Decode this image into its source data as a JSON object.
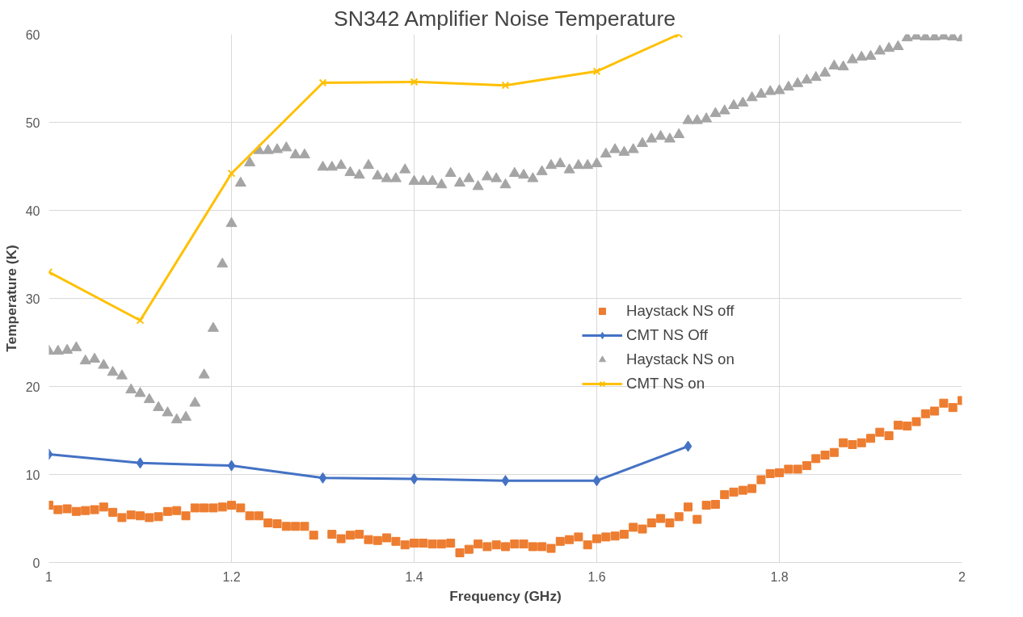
{
  "chart_data": {
    "type": "line",
    "title": "SN342 Amplifier Noise Temperature",
    "xlabel": "Frequency (GHz)",
    "ylabel": "Temperature (K)",
    "xlim": [
      1,
      2
    ],
    "xticks": [
      1,
      1.2,
      1.4,
      1.6,
      1.8,
      2
    ],
    "ylim": [
      0,
      60
    ],
    "yticks": [
      0,
      10,
      20,
      30,
      40,
      50,
      60
    ],
    "grid": true,
    "legend": "right",
    "series": [
      {
        "name": "Haystack NS off",
        "type": "scatter",
        "marker": "square",
        "color": "#ed7d31",
        "x": [
          1,
          1.01,
          1.02,
          1.03,
          1.04,
          1.05,
          1.06,
          1.07,
          1.08,
          1.09,
          1.1,
          1.11,
          1.12,
          1.13,
          1.14,
          1.15,
          1.16,
          1.17,
          1.18,
          1.19,
          1.2,
          1.21,
          1.22,
          1.23,
          1.24,
          1.25,
          1.26,
          1.27,
          1.28,
          1.29,
          1.3,
          1.31,
          1.32,
          1.33,
          1.34,
          1.35,
          1.36,
          1.37,
          1.38,
          1.39,
          1.4,
          1.41,
          1.42,
          1.43,
          1.44,
          1.45,
          1.46,
          1.47,
          1.48,
          1.49,
          1.5,
          1.51,
          1.52,
          1.53,
          1.54,
          1.55,
          1.56,
          1.57,
          1.58,
          1.59,
          1.6,
          1.61,
          1.62,
          1.63,
          1.64,
          1.65,
          1.66,
          1.67,
          1.68,
          1.69,
          1.7,
          1.71,
          1.72,
          1.73,
          1.74,
          1.75,
          1.76,
          1.77,
          1.78,
          1.79,
          1.8,
          1.81,
          1.82,
          1.83,
          1.84,
          1.85,
          1.86,
          1.87,
          1.88,
          1.89,
          1.9,
          1.91,
          1.92,
          1.93,
          1.94,
          1.95,
          1.96,
          1.97,
          1.98,
          1.99,
          2
        ],
        "values": [
          6.5,
          6.0,
          6.1,
          5.8,
          5.9,
          6.0,
          6.3,
          5.7,
          5.1,
          5.4,
          5.3,
          5.1,
          5.2,
          5.8,
          5.9,
          5.3,
          6.2,
          6.2,
          6.2,
          6.3,
          6.5,
          6.2,
          5.3,
          5.3,
          4.5,
          4.4,
          4.1,
          4.1,
          4.1,
          3.1,
          null,
          3.2,
          2.7,
          3.1,
          3.2,
          2.6,
          2.5,
          2.8,
          2.4,
          2.0,
          2.2,
          2.2,
          2.1,
          2.1,
          2.2,
          1.1,
          1.5,
          2.1,
          1.8,
          2.0,
          1.8,
          2.1,
          2.1,
          1.8,
          1.8,
          1.6,
          2.4,
          2.6,
          2.9,
          2.0,
          2.7,
          2.9,
          3.0,
          3.2,
          4.0,
          3.8,
          4.5,
          5.0,
          4.5,
          5.2,
          6.3,
          4.9,
          6.5,
          6.6,
          7.7,
          8.0,
          8.2,
          8.4,
          9.4,
          10.1,
          10.2,
          10.6,
          10.6,
          11.0,
          11.8,
          12.2,
          12.5,
          13.6,
          13.4,
          13.6,
          14.1,
          14.8,
          14.4,
          15.6,
          15.5,
          16.0,
          16.9,
          17.2,
          18.1,
          17.6,
          18.4
        ]
      },
      {
        "name": "CMT NS Off",
        "marker": "diamond",
        "color": "#4472c4",
        "x": [
          1,
          1.1,
          1.2,
          1.3,
          1.4,
          1.5,
          1.6,
          1.7
        ],
        "values": [
          12.3,
          11.3,
          11.0,
          9.6,
          9.5,
          9.3,
          9.3,
          13.2
        ]
      },
      {
        "name": "Haystack NS on",
        "type": "scatter",
        "marker": "triangle",
        "color": "#a5a5a5",
        "x": [
          1,
          1.01,
          1.02,
          1.03,
          1.04,
          1.05,
          1.06,
          1.07,
          1.08,
          1.09,
          1.1,
          1.11,
          1.12,
          1.13,
          1.14,
          1.15,
          1.16,
          1.17,
          1.18,
          1.19,
          1.2,
          1.21,
          1.22,
          1.23,
          1.24,
          1.25,
          1.26,
          1.27,
          1.28,
          1.29,
          1.3,
          1.31,
          1.32,
          1.33,
          1.34,
          1.35,
          1.36,
          1.37,
          1.38,
          1.39,
          1.4,
          1.41,
          1.42,
          1.43,
          1.44,
          1.45,
          1.46,
          1.47,
          1.48,
          1.49,
          1.5,
          1.51,
          1.52,
          1.53,
          1.54,
          1.55,
          1.56,
          1.57,
          1.58,
          1.59,
          1.6,
          1.61,
          1.62,
          1.63,
          1.64,
          1.65,
          1.66,
          1.67,
          1.68,
          1.69,
          1.7,
          1.71,
          1.72,
          1.73,
          1.74,
          1.75,
          1.76,
          1.77,
          1.78,
          1.79,
          1.8,
          1.81,
          1.82,
          1.83,
          1.84,
          1.85,
          1.86,
          1.87,
          1.88,
          1.89,
          1.9,
          1.91,
          1.92,
          1.93,
          1.94,
          1.95,
          1.96,
          1.97,
          1.98,
          1.99,
          2
        ],
        "values": [
          24.0,
          24.0,
          24.1,
          24.4,
          22.9,
          23.1,
          22.4,
          21.6,
          21.2,
          19.6,
          19.2,
          18.5,
          17.6,
          17.0,
          16.2,
          16.5,
          18.1,
          21.3,
          26.6,
          33.9,
          38.5,
          43.1,
          45.4,
          46.8,
          46.8,
          46.9,
          47.1,
          46.3,
          46.3,
          null,
          44.9,
          44.9,
          45.1,
          44.3,
          44.0,
          45.1,
          43.9,
          43.6,
          43.6,
          44.6,
          43.3,
          43.3,
          43.3,
          42.9,
          44.2,
          43.1,
          43.6,
          42.7,
          43.8,
          43.6,
          42.9,
          44.2,
          44.0,
          43.6,
          44.4,
          45.1,
          45.3,
          44.6,
          45.1,
          45.1,
          45.3,
          46.4,
          46.9,
          46.6,
          46.9,
          47.6,
          48.1,
          48.4,
          48.1,
          48.6,
          50.2,
          50.2,
          50.4,
          51.0,
          51.3,
          51.9,
          52.2,
          52.8,
          53.2,
          53.5,
          53.6,
          54.0,
          54.4,
          54.8,
          55.1,
          55.6,
          56.4,
          56.3,
          57.1,
          57.4,
          57.5,
          58.1,
          58.4,
          58.6,
          59.6,
          59.8,
          59.7,
          59.7,
          59.8,
          59.7,
          59.6
        ]
      },
      {
        "name": "CMT NS on",
        "marker": "cross",
        "color": "#ffc000",
        "x": [
          1,
          1.1,
          1.2,
          1.3,
          1.4,
          1.5,
          1.6,
          1.69
        ],
        "values": [
          33.0,
          27.5,
          44.2,
          54.5,
          54.6,
          54.2,
          55.8,
          60
        ]
      }
    ]
  }
}
